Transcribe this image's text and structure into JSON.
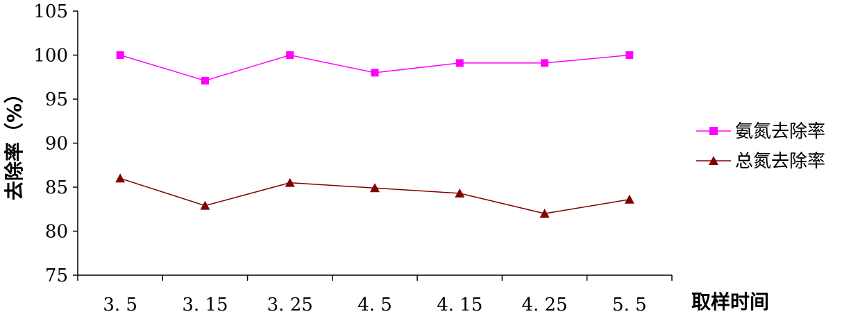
{
  "chart_data": {
    "type": "line",
    "categories": [
      "3. 5",
      "3. 15",
      "3. 25",
      "4. 5",
      "4. 15",
      "4. 25",
      "5. 5"
    ],
    "series": [
      {
        "name": "氨氮去除率",
        "values": [
          100,
          97.1,
          100,
          98,
          99.1,
          99.1,
          100
        ],
        "color": "#FF00FF",
        "marker": "square"
      },
      {
        "name": "总氮去除率",
        "values": [
          86,
          82.9,
          85.5,
          84.9,
          84.3,
          82,
          83.6
        ],
        "color": "#800000",
        "marker": "triangle"
      }
    ],
    "xlabel": "取样时间",
    "ylabel": "去除率（%）",
    "ylim": [
      75,
      105
    ],
    "yticks": [
      "75",
      "80",
      "85",
      "90",
      "95",
      "100",
      "105"
    ],
    "grid": false,
    "legend_position": "right"
  }
}
